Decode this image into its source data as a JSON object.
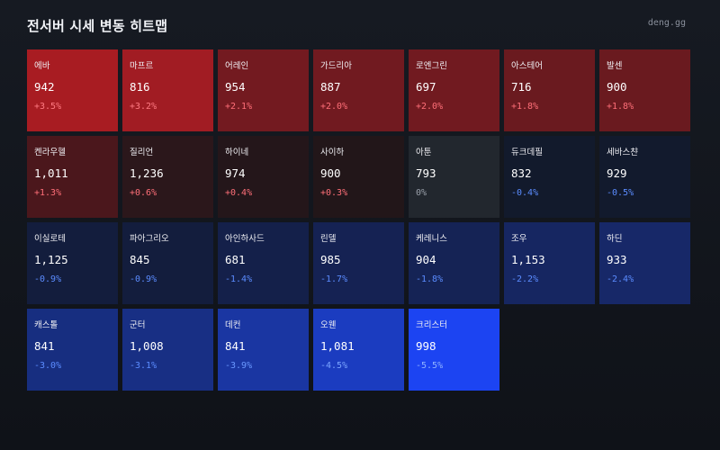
{
  "header": {
    "title": "전서버 시세 변동 히트맵",
    "brand": "deng.gg"
  },
  "heatmap": {
    "cells": [
      {
        "name": "에바",
        "price": "942",
        "change": "+3.5%",
        "bg": "#a81c22",
        "change_color": "#ff7a82"
      },
      {
        "name": "마프르",
        "price": "816",
        "change": "+3.2%",
        "bg": "#a11c23",
        "change_color": "#ff7a82"
      },
      {
        "name": "어레인",
        "price": "954",
        "change": "+2.1%",
        "bg": "#731a20",
        "change_color": "#ff6f78"
      },
      {
        "name": "가드리아",
        "price": "887",
        "change": "+2.0%",
        "bg": "#711a20",
        "change_color": "#ff6f78"
      },
      {
        "name": "로엔그린",
        "price": "697",
        "change": "+2.0%",
        "bg": "#711a20",
        "change_color": "#ff6f78"
      },
      {
        "name": "아스테어",
        "price": "716",
        "change": "+1.8%",
        "bg": "#6a1a1f",
        "change_color": "#ff6f78"
      },
      {
        "name": "발센",
        "price": "900",
        "change": "+1.8%",
        "bg": "#6a1a1f",
        "change_color": "#ff6f78"
      },
      {
        "name": "켄라우헬",
        "price": "1,011",
        "change": "+1.3%",
        "bg": "#4b171c",
        "change_color": "#ff6f78"
      },
      {
        "name": "질리언",
        "price": "1,236",
        "change": "+0.6%",
        "bg": "#2b171b",
        "change_color": "#ff6f78"
      },
      {
        "name": "하이네",
        "price": "974",
        "change": "+0.4%",
        "bg": "#24161a",
        "change_color": "#ff6f78"
      },
      {
        "name": "사이하",
        "price": "900",
        "change": "+0.3%",
        "bg": "#221619",
        "change_color": "#ff6f78"
      },
      {
        "name": "아툰",
        "price": "793",
        "change": "0%",
        "bg": "#22272e",
        "change_color": "#9aa0aa"
      },
      {
        "name": "듀크데필",
        "price": "832",
        "change": "-0.4%",
        "bg": "#121a2c",
        "change_color": "#5b8cff"
      },
      {
        "name": "세바스챤",
        "price": "929",
        "change": "-0.5%",
        "bg": "#121a2d",
        "change_color": "#5b8cff"
      },
      {
        "name": "이실로테",
        "price": "1,125",
        "change": "-0.9%",
        "bg": "#131d3d",
        "change_color": "#5b8cff"
      },
      {
        "name": "파아그리오",
        "price": "845",
        "change": "-0.9%",
        "bg": "#131d3d",
        "change_color": "#5b8cff"
      },
      {
        "name": "아인하사드",
        "price": "681",
        "change": "-1.4%",
        "bg": "#14204a",
        "change_color": "#5b8cff"
      },
      {
        "name": "린델",
        "price": "985",
        "change": "-1.7%",
        "bg": "#152253",
        "change_color": "#5b8cff"
      },
      {
        "name": "케레니스",
        "price": "904",
        "change": "-1.8%",
        "bg": "#152355",
        "change_color": "#5b8cff"
      },
      {
        "name": "조우",
        "price": "1,153",
        "change": "-2.2%",
        "bg": "#162661",
        "change_color": "#5b8cff"
      },
      {
        "name": "하딘",
        "price": "933",
        "change": "-2.4%",
        "bg": "#172868",
        "change_color": "#5b8cff"
      },
      {
        "name": "캐스톨",
        "price": "841",
        "change": "-3.0%",
        "bg": "#172e80",
        "change_color": "#5b8cff"
      },
      {
        "name": "군터",
        "price": "1,008",
        "change": "-3.1%",
        "bg": "#182f84",
        "change_color": "#5b8cff"
      },
      {
        "name": "데컨",
        "price": "841",
        "change": "-3.9%",
        "bg": "#1a36a2",
        "change_color": "#6a98ff"
      },
      {
        "name": "오웬",
        "price": "1,081",
        "change": "-4.5%",
        "bg": "#1b3cc0",
        "change_color": "#7aa4ff"
      },
      {
        "name": "크리스터",
        "price": "998",
        "change": "-5.5%",
        "bg": "#1c44f2",
        "change_color": "#8fb2ff"
      }
    ]
  }
}
